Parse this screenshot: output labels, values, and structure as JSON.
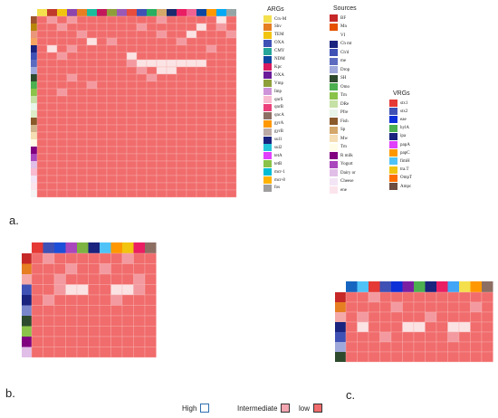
{
  "heatmaps": {
    "a": {
      "label": "a.",
      "rows": 25,
      "cols": 20,
      "top_colors": [
        "#f4e04d",
        "#c0392b",
        "#f1c40f",
        "#8e44ad",
        "#e67e22",
        "#1abc9c",
        "#c2185b",
        "#8e9f3a",
        "#9b59b6",
        "#e74c3c",
        "#3f51b5",
        "#27ae60",
        "#d4a76a",
        "#1a2a6c",
        "#e91e63",
        "#f06292",
        "#0d47a1",
        "#ff9800",
        "#03a9f4",
        "#95a5a6"
      ],
      "left_colors": [
        "#a0522d",
        "#b8860b",
        "#e9967a",
        "#f4a460",
        "#1a237e",
        "#3f51b5",
        "#5c6bc0",
        "#9fa8da",
        "#2e4a2e",
        "#4caf50",
        "#8bc34a",
        "#c5e1a5",
        "#e8f5e9",
        "#dcedc8",
        "#8b5a2b",
        "#d2b48c",
        "#f5deb3",
        "#fffde7",
        "#800080",
        "#ab47bc",
        "#e1bee7",
        "#f8bbd0",
        "#f3e5f5",
        "#fce4ec",
        "#f5f5f5"
      ],
      "light_cells": [
        [
          6,
          10
        ],
        [
          6,
          11
        ],
        [
          6,
          12
        ],
        [
          6,
          13
        ],
        [
          6,
          14
        ],
        [
          6,
          15
        ],
        [
          6,
          16
        ],
        [
          7,
          12
        ],
        [
          7,
          13
        ],
        [
          3,
          5
        ],
        [
          4,
          1
        ],
        [
          2,
          15
        ],
        [
          1,
          16
        ],
        [
          0,
          18
        ],
        [
          5,
          9
        ]
      ],
      "mid_cells": [
        [
          0,
          1
        ],
        [
          0,
          3
        ],
        [
          1,
          2
        ],
        [
          2,
          4
        ],
        [
          3,
          7
        ],
        [
          4,
          3
        ],
        [
          5,
          2
        ],
        [
          6,
          9
        ],
        [
          7,
          10
        ],
        [
          8,
          11
        ],
        [
          8,
          3
        ],
        [
          9,
          5
        ],
        [
          10,
          2
        ],
        [
          1,
          10
        ],
        [
          2,
          12
        ],
        [
          3,
          14
        ],
        [
          0,
          12
        ],
        [
          1,
          18
        ],
        [
          2,
          19
        ],
        [
          4,
          17
        ]
      ]
    },
    "b": {
      "label": "b.",
      "rows": 10,
      "cols": 11,
      "top_colors": [
        "#e53935",
        "#3f51b5",
        "#1e4fd8",
        "#ab47bc",
        "#7cb342",
        "#1a237e",
        "#4fc3f7",
        "#ff9800",
        "#f1c40f",
        "#e91e63",
        "#8d6e63"
      ],
      "left_colors": [
        "#c62828",
        "#e67e22",
        "#f4a9a8",
        "#3f51b5",
        "#1a237e",
        "#7986cb",
        "#2e4a2e",
        "#8bc34a",
        "#800080",
        "#e1bee7"
      ],
      "light_cells": [
        [
          3,
          3
        ],
        [
          3,
          4
        ],
        [
          3,
          7
        ],
        [
          3,
          8
        ]
      ],
      "mid_cells": [
        [
          0,
          1
        ],
        [
          1,
          3
        ],
        [
          2,
          2
        ],
        [
          4,
          1
        ],
        [
          1,
          6
        ],
        [
          2,
          9
        ],
        [
          4,
          7
        ],
        [
          0,
          8
        ],
        [
          3,
          2
        ],
        [
          3,
          9
        ]
      ]
    },
    "c": {
      "label": "c.",
      "rows": 7,
      "cols": 13,
      "top_colors": [
        "#1565c0",
        "#4fc3f7",
        "#e53935",
        "#3f51b5",
        "#0d2fd8",
        "#7b1fa2",
        "#4caf50",
        "#1a237e",
        "#e91e63",
        "#42a5f5",
        "#f4e04d",
        "#ff9800",
        "#8d6e63"
      ],
      "left_colors": [
        "#c62828",
        "#e67e22",
        "#f4a9a8",
        "#1a237e",
        "#3f51b5",
        "#9fa8da",
        "#2e4a2e"
      ],
      "light_cells": [
        [
          3,
          1
        ],
        [
          3,
          5
        ],
        [
          3,
          6
        ],
        [
          3,
          9
        ],
        [
          3,
          10
        ]
      ],
      "mid_cells": [
        [
          0,
          2
        ],
        [
          1,
          4
        ],
        [
          2,
          7
        ],
        [
          4,
          3
        ],
        [
          1,
          11
        ],
        [
          2,
          1
        ],
        [
          4,
          9
        ]
      ]
    }
  },
  "legends": {
    "args": {
      "title": "ARGs",
      "items": [
        {
          "label": "Ctx-M",
          "color": "#f4e04d"
        },
        {
          "label": "Shv",
          "color": "#e67e22"
        },
        {
          "label": "TEM",
          "color": "#f1c40f"
        },
        {
          "label": "OXA",
          "color": "#3f51b5"
        },
        {
          "label": "CMY",
          "color": "#26a69a"
        },
        {
          "label": "NDM",
          "color": "#0d47a1"
        },
        {
          "label": "Kpc",
          "color": "#d81b60"
        },
        {
          "label": "OXA",
          "color": "#6a1b9a"
        },
        {
          "label": "Vmp",
          "color": "#8e9f3a"
        },
        {
          "label": "Imp",
          "color": "#ce93d8"
        },
        {
          "label": "qnrS",
          "color": "#f8bbd0"
        },
        {
          "label": "qnrB",
          "color": "#ec407a"
        },
        {
          "label": "qncA",
          "color": "#8d6e63"
        },
        {
          "label": "gyrA",
          "color": "#ff9800"
        },
        {
          "label": "gyrB",
          "color": "#bcaaa4"
        },
        {
          "label": "sul1",
          "color": "#1a237e"
        },
        {
          "label": "sul2",
          "color": "#26c6da"
        },
        {
          "label": "tetA",
          "color": "#e040fb"
        },
        {
          "label": "tetB",
          "color": "#8bc34a"
        },
        {
          "label": "mcr-1",
          "color": "#00bcd4"
        },
        {
          "label": "mcr-8",
          "color": "#ffb300"
        },
        {
          "label": "fos",
          "color": "#9e9e9e"
        }
      ]
    },
    "sources": {
      "title": "Sources",
      "items": [
        {
          "label": "BF",
          "color": "#c62828"
        },
        {
          "label": "Mn",
          "color": "#e65100"
        },
        {
          "label": "VI",
          "color": "#ffffff"
        },
        {
          "label": "Ch mt",
          "color": "#1a237e"
        },
        {
          "label": "Ch'd",
          "color": "#3f51b5"
        },
        {
          "label": "me",
          "color": "#5c6bc0"
        },
        {
          "label": "Drop",
          "color": "#9fa8da"
        },
        {
          "label": "SH",
          "color": "#2e4a2e"
        },
        {
          "label": "Omo",
          "color": "#4caf50"
        },
        {
          "label": "Tm",
          "color": "#8bc34a"
        },
        {
          "label": "DRe",
          "color": "#c5e1a5"
        },
        {
          "label": "Pfre",
          "color": "#e8f5e9"
        },
        {
          "label": "Fish",
          "color": "#8b5a2b"
        },
        {
          "label": "Sp",
          "color": "#d4a76a"
        },
        {
          "label": "Mw",
          "color": "#f5deb3"
        },
        {
          "label": "Tm",
          "color": "#fffde7"
        },
        {
          "label": "R milk",
          "color": "#800080"
        },
        {
          "label": "Yogurt",
          "color": "#ab47bc"
        },
        {
          "label": "Dairy or",
          "color": "#e1bee7"
        },
        {
          "label": "Cheese",
          "color": "#f3e5f5"
        },
        {
          "label": "ene",
          "color": "#fce4ec"
        }
      ]
    },
    "vrgs": {
      "title": "VRGs",
      "items": [
        {
          "label": "stx1",
          "color": "#e53935"
        },
        {
          "label": "stx2",
          "color": "#3f51b5"
        },
        {
          "label": "eae",
          "color": "#0d2fd8"
        },
        {
          "label": "hylA",
          "color": "#4caf50"
        },
        {
          "label": "ipa",
          "color": "#1a237e"
        },
        {
          "label": "papA",
          "color": "#e040fb"
        },
        {
          "label": "papC",
          "color": "#ff9800"
        },
        {
          "label": "fimH",
          "color": "#4fc3f7"
        },
        {
          "label": "tra.T",
          "color": "#f1c40f"
        },
        {
          "label": "OmpT",
          "color": "#ff6d00"
        },
        {
          "label": "Ampc",
          "color": "#6d4c41"
        }
      ]
    }
  },
  "key": {
    "high_label": "High",
    "intermediate_label": "Intermediate",
    "low_label": "low",
    "high_color": "#ffffff",
    "intermediate_color": "#f4a6b0",
    "low_color": "#f16c6c"
  },
  "cell_colors": {
    "low": "#f16c6c",
    "mid": "#f39aa0",
    "light": "#fbe3e4"
  }
}
